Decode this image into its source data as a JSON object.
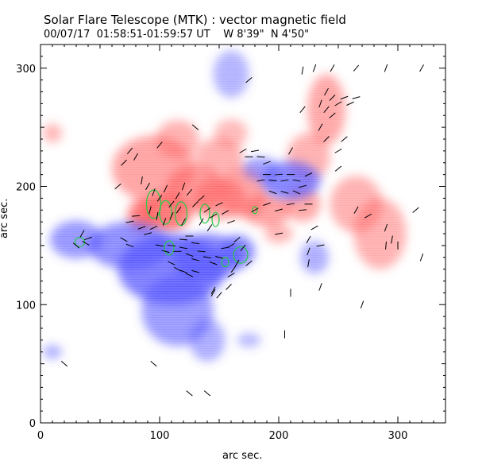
{
  "header": {
    "title": "Solar Flare Telescope (MTK) : vector magnetic field",
    "date": "00/07/17",
    "time_range": "01:58:51-01:59:57 UT",
    "position_w": "W 8'39\"",
    "position_n": "N 4'50\""
  },
  "colors": {
    "positive_field": "#ff5a5a",
    "negative_field": "#4a4aff",
    "vector": "#000000",
    "contour": "#22cc44"
  },
  "chart_data": {
    "type": "heatmap",
    "title": "Solar Flare Telescope (MTK) : vector magnetic field",
    "xlabel": "arc sec.",
    "ylabel": "arc sec.",
    "xlim": [
      0,
      340
    ],
    "ylim": [
      0,
      320
    ],
    "x_ticks": [
      0,
      100,
      200,
      300
    ],
    "y_ticks": [
      0,
      100,
      200,
      300
    ],
    "positive_regions": [
      {
        "x": 105,
        "y": 178,
        "rx": 22,
        "ry": 16,
        "strength": 1.0
      },
      {
        "x": 85,
        "y": 175,
        "rx": 12,
        "ry": 14,
        "strength": 0.9
      },
      {
        "x": 95,
        "y": 215,
        "rx": 35,
        "ry": 28,
        "strength": 0.5
      },
      {
        "x": 130,
        "y": 198,
        "rx": 25,
        "ry": 20,
        "strength": 0.6
      },
      {
        "x": 150,
        "y": 190,
        "rx": 22,
        "ry": 18,
        "strength": 0.55
      },
      {
        "x": 170,
        "y": 195,
        "rx": 20,
        "ry": 22,
        "strength": 0.5
      },
      {
        "x": 150,
        "y": 225,
        "rx": 20,
        "ry": 16,
        "strength": 0.35
      },
      {
        "x": 115,
        "y": 240,
        "rx": 18,
        "ry": 16,
        "strength": 0.35
      },
      {
        "x": 190,
        "y": 180,
        "rx": 20,
        "ry": 14,
        "strength": 0.55
      },
      {
        "x": 220,
        "y": 185,
        "rx": 15,
        "ry": 15,
        "strength": 0.45
      },
      {
        "x": 240,
        "y": 265,
        "rx": 16,
        "ry": 30,
        "strength": 0.45
      },
      {
        "x": 225,
        "y": 225,
        "rx": 18,
        "ry": 20,
        "strength": 0.35
      },
      {
        "x": 265,
        "y": 185,
        "rx": 22,
        "ry": 24,
        "strength": 0.35
      },
      {
        "x": 285,
        "y": 160,
        "rx": 22,
        "ry": 30,
        "strength": 0.35
      },
      {
        "x": 160,
        "y": 245,
        "rx": 14,
        "ry": 12,
        "strength": 0.25
      },
      {
        "x": 10,
        "y": 245,
        "rx": 8,
        "ry": 8,
        "strength": 0.3
      },
      {
        "x": 200,
        "y": 160,
        "rx": 12,
        "ry": 8,
        "strength": 0.3
      }
    ],
    "negative_regions": [
      {
        "x": 110,
        "y": 130,
        "rx": 45,
        "ry": 30,
        "strength": 0.8
      },
      {
        "x": 75,
        "y": 150,
        "rx": 35,
        "ry": 20,
        "strength": 0.65
      },
      {
        "x": 30,
        "y": 155,
        "rx": 22,
        "ry": 16,
        "strength": 0.55
      },
      {
        "x": 140,
        "y": 140,
        "rx": 30,
        "ry": 20,
        "strength": 0.7
      },
      {
        "x": 165,
        "y": 145,
        "rx": 15,
        "ry": 14,
        "strength": 0.7
      },
      {
        "x": 115,
        "y": 95,
        "rx": 30,
        "ry": 30,
        "strength": 0.5
      },
      {
        "x": 140,
        "y": 70,
        "rx": 15,
        "ry": 18,
        "strength": 0.3
      },
      {
        "x": 210,
        "y": 205,
        "rx": 25,
        "ry": 16,
        "strength": 0.75
      },
      {
        "x": 185,
        "y": 215,
        "rx": 15,
        "ry": 10,
        "strength": 0.45
      },
      {
        "x": 160,
        "y": 295,
        "rx": 15,
        "ry": 20,
        "strength": 0.25
      },
      {
        "x": 230,
        "y": 140,
        "rx": 12,
        "ry": 14,
        "strength": 0.3
      },
      {
        "x": 10,
        "y": 60,
        "rx": 8,
        "ry": 6,
        "strength": 0.3
      },
      {
        "x": 175,
        "y": 70,
        "rx": 10,
        "ry": 6,
        "strength": 0.2
      }
    ],
    "vectors": [
      {
        "x": 90,
        "y": 200,
        "a": 60
      },
      {
        "x": 95,
        "y": 195,
        "a": 70
      },
      {
        "x": 100,
        "y": 190,
        "a": 55
      },
      {
        "x": 105,
        "y": 198,
        "a": 65
      },
      {
        "x": 110,
        "y": 185,
        "a": 50
      },
      {
        "x": 115,
        "y": 192,
        "a": 60
      },
      {
        "x": 92,
        "y": 180,
        "a": 75
      },
      {
        "x": 98,
        "y": 175,
        "a": 80
      },
      {
        "x": 104,
        "y": 170,
        "a": 70
      },
      {
        "x": 110,
        "y": 175,
        "a": 65
      },
      {
        "x": 116,
        "y": 180,
        "a": 55
      },
      {
        "x": 120,
        "y": 170,
        "a": 60
      },
      {
        "x": 85,
        "y": 165,
        "a": 20
      },
      {
        "x": 90,
        "y": 160,
        "a": 15
      },
      {
        "x": 95,
        "y": 165,
        "a": 25
      },
      {
        "x": 75,
        "y": 170,
        "a": 10
      },
      {
        "x": 80,
        "y": 175,
        "a": 5
      },
      {
        "x": 85,
        "y": 205,
        "a": 80
      },
      {
        "x": 120,
        "y": 200,
        "a": 70
      },
      {
        "x": 125,
        "y": 195,
        "a": 50
      },
      {
        "x": 130,
        "y": 185,
        "a": 45
      },
      {
        "x": 135,
        "y": 190,
        "a": 40
      },
      {
        "x": 140,
        "y": 180,
        "a": 35
      },
      {
        "x": 145,
        "y": 175,
        "a": 30
      },
      {
        "x": 150,
        "y": 185,
        "a": 25
      },
      {
        "x": 155,
        "y": 178,
        "a": 30
      },
      {
        "x": 160,
        "y": 170,
        "a": 20
      },
      {
        "x": 135,
        "y": 170,
        "a": 60
      },
      {
        "x": 142,
        "y": 165,
        "a": 55
      },
      {
        "x": 100,
        "y": 150,
        "a": -10
      },
      {
        "x": 105,
        "y": 145,
        "a": -15
      },
      {
        "x": 110,
        "y": 150,
        "a": -5
      },
      {
        "x": 115,
        "y": 145,
        "a": 0
      },
      {
        "x": 120,
        "y": 148,
        "a": -10
      },
      {
        "x": 125,
        "y": 142,
        "a": -20
      },
      {
        "x": 130,
        "y": 138,
        "a": -15
      },
      {
        "x": 135,
        "y": 145,
        "a": -5
      },
      {
        "x": 140,
        "y": 140,
        "a": -10
      },
      {
        "x": 145,
        "y": 135,
        "a": -20
      },
      {
        "x": 150,
        "y": 140,
        "a": -15
      },
      {
        "x": 155,
        "y": 148,
        "a": 10
      },
      {
        "x": 160,
        "y": 150,
        "a": 30
      },
      {
        "x": 165,
        "y": 155,
        "a": 40
      },
      {
        "x": 170,
        "y": 148,
        "a": 50
      },
      {
        "x": 110,
        "y": 135,
        "a": -25
      },
      {
        "x": 115,
        "y": 130,
        "a": -30
      },
      {
        "x": 120,
        "y": 128,
        "a": -20
      },
      {
        "x": 125,
        "y": 125,
        "a": -25
      },
      {
        "x": 130,
        "y": 128,
        "a": -15
      },
      {
        "x": 120,
        "y": 155,
        "a": -5
      },
      {
        "x": 125,
        "y": 158,
        "a": 0
      },
      {
        "x": 130,
        "y": 152,
        "a": -8
      },
      {
        "x": 70,
        "y": 155,
        "a": -30
      },
      {
        "x": 75,
        "y": 150,
        "a": -20
      },
      {
        "x": 35,
        "y": 160,
        "a": 60
      },
      {
        "x": 38,
        "y": 152,
        "a": -30
      },
      {
        "x": 40,
        "y": 156,
        "a": 20
      },
      {
        "x": 30,
        "y": 150,
        "a": -40
      },
      {
        "x": 175,
        "y": 135,
        "a": 40
      },
      {
        "x": 165,
        "y": 135,
        "a": 60
      },
      {
        "x": 160,
        "y": 125,
        "a": 30
      },
      {
        "x": 158,
        "y": 115,
        "a": 45
      },
      {
        "x": 150,
        "y": 108,
        "a": 50
      },
      {
        "x": 145,
        "y": 112,
        "a": 60
      },
      {
        "x": 185,
        "y": 205,
        "a": 10
      },
      {
        "x": 190,
        "y": 210,
        "a": 0
      },
      {
        "x": 195,
        "y": 205,
        "a": -5
      },
      {
        "x": 200,
        "y": 210,
        "a": 5
      },
      {
        "x": 205,
        "y": 205,
        "a": 10
      },
      {
        "x": 210,
        "y": 210,
        "a": 0
      },
      {
        "x": 215,
        "y": 205,
        "a": -10
      },
      {
        "x": 220,
        "y": 200,
        "a": 15
      },
      {
        "x": 225,
        "y": 210,
        "a": 25
      },
      {
        "x": 195,
        "y": 195,
        "a": -20
      },
      {
        "x": 205,
        "y": 195,
        "a": -15
      },
      {
        "x": 215,
        "y": 195,
        "a": -25
      },
      {
        "x": 175,
        "y": 225,
        "a": 0
      },
      {
        "x": 180,
        "y": 230,
        "a": 10
      },
      {
        "x": 185,
        "y": 225,
        "a": -5
      },
      {
        "x": 190,
        "y": 220,
        "a": 20
      },
      {
        "x": 170,
        "y": 230,
        "a": 30
      },
      {
        "x": 190,
        "y": 185,
        "a": 20
      },
      {
        "x": 200,
        "y": 180,
        "a": 15
      },
      {
        "x": 210,
        "y": 185,
        "a": 10
      },
      {
        "x": 220,
        "y": 180,
        "a": 5
      },
      {
        "x": 225,
        "y": 185,
        "a": 0
      },
      {
        "x": 180,
        "y": 180,
        "a": 30
      },
      {
        "x": 240,
        "y": 280,
        "a": 60
      },
      {
        "x": 245,
        "y": 275,
        "a": 45
      },
      {
        "x": 250,
        "y": 270,
        "a": 30
      },
      {
        "x": 255,
        "y": 275,
        "a": 20
      },
      {
        "x": 235,
        "y": 270,
        "a": 70
      },
      {
        "x": 240,
        "y": 265,
        "a": 50
      },
      {
        "x": 245,
        "y": 260,
        "a": 40
      },
      {
        "x": 260,
        "y": 270,
        "a": 25
      },
      {
        "x": 265,
        "y": 275,
        "a": 15
      },
      {
        "x": 235,
        "y": 250,
        "a": 60
      },
      {
        "x": 240,
        "y": 240,
        "a": 45
      },
      {
        "x": 250,
        "y": 230,
        "a": 30
      },
      {
        "x": 255,
        "y": 240,
        "a": 40
      },
      {
        "x": 230,
        "y": 300,
        "a": 70
      },
      {
        "x": 245,
        "y": 300,
        "a": 60
      },
      {
        "x": 265,
        "y": 300,
        "a": 50
      },
      {
        "x": 290,
        "y": 300,
        "a": 70
      },
      {
        "x": 320,
        "y": 300,
        "a": 60
      },
      {
        "x": 220,
        "y": 298,
        "a": 80
      },
      {
        "x": 175,
        "y": 290,
        "a": 40
      },
      {
        "x": 220,
        "y": 265,
        "a": 50
      },
      {
        "x": 265,
        "y": 180,
        "a": 60
      },
      {
        "x": 275,
        "y": 175,
        "a": 30
      },
      {
        "x": 290,
        "y": 165,
        "a": 70
      },
      {
        "x": 295,
        "y": 155,
        "a": 80
      },
      {
        "x": 300,
        "y": 150,
        "a": 90
      },
      {
        "x": 290,
        "y": 150,
        "a": 85
      },
      {
        "x": 315,
        "y": 180,
        "a": 40
      },
      {
        "x": 320,
        "y": 140,
        "a": 70
      },
      {
        "x": 230,
        "y": 165,
        "a": 30
      },
      {
        "x": 235,
        "y": 150,
        "a": 10
      },
      {
        "x": 225,
        "y": 155,
        "a": 60
      },
      {
        "x": 225,
        "y": 145,
        "a": 70
      },
      {
        "x": 225,
        "y": 135,
        "a": 80
      },
      {
        "x": 210,
        "y": 230,
        "a": 60
      },
      {
        "x": 250,
        "y": 215,
        "a": 40
      },
      {
        "x": 200,
        "y": 160,
        "a": 10
      },
      {
        "x": 270,
        "y": 100,
        "a": 70
      },
      {
        "x": 235,
        "y": 115,
        "a": 70
      },
      {
        "x": 210,
        "y": 110,
        "a": 90
      },
      {
        "x": 205,
        "y": 75,
        "a": 90
      },
      {
        "x": 145,
        "y": 110,
        "a": 60
      },
      {
        "x": 65,
        "y": 200,
        "a": 40
      },
      {
        "x": 70,
        "y": 220,
        "a": 45
      },
      {
        "x": 75,
        "y": 230,
        "a": 50
      },
      {
        "x": 80,
        "y": 225,
        "a": 60
      },
      {
        "x": 100,
        "y": 235,
        "a": 50
      },
      {
        "x": 130,
        "y": 250,
        "a": -40
      },
      {
        "x": 95,
        "y": 50,
        "a": -40
      },
      {
        "x": 20,
        "y": 50,
        "a": -40
      },
      {
        "x": 125,
        "y": 25,
        "a": -40
      },
      {
        "x": 140,
        "y": 25,
        "a": -40
      },
      {
        "x": 162,
        "y": 130,
        "a": 55
      }
    ],
    "contours": [
      {
        "x": 95,
        "y": 185,
        "rx": 6,
        "ry": 12
      },
      {
        "x": 105,
        "y": 178,
        "rx": 5,
        "ry": 10
      },
      {
        "x": 118,
        "y": 177,
        "rx": 5,
        "ry": 10
      },
      {
        "x": 138,
        "y": 177,
        "rx": 4,
        "ry": 8
      },
      {
        "x": 147,
        "y": 172,
        "rx": 3,
        "ry": 6
      },
      {
        "x": 180,
        "y": 180,
        "rx": 2,
        "ry": 3
      },
      {
        "x": 108,
        "y": 148,
        "rx": 4,
        "ry": 6
      },
      {
        "x": 33,
        "y": 153,
        "rx": 4,
        "ry": 4
      },
      {
        "x": 168,
        "y": 142,
        "rx": 6,
        "ry": 7
      },
      {
        "x": 155,
        "y": 136,
        "rx": 3,
        "ry": 4
      }
    ]
  }
}
